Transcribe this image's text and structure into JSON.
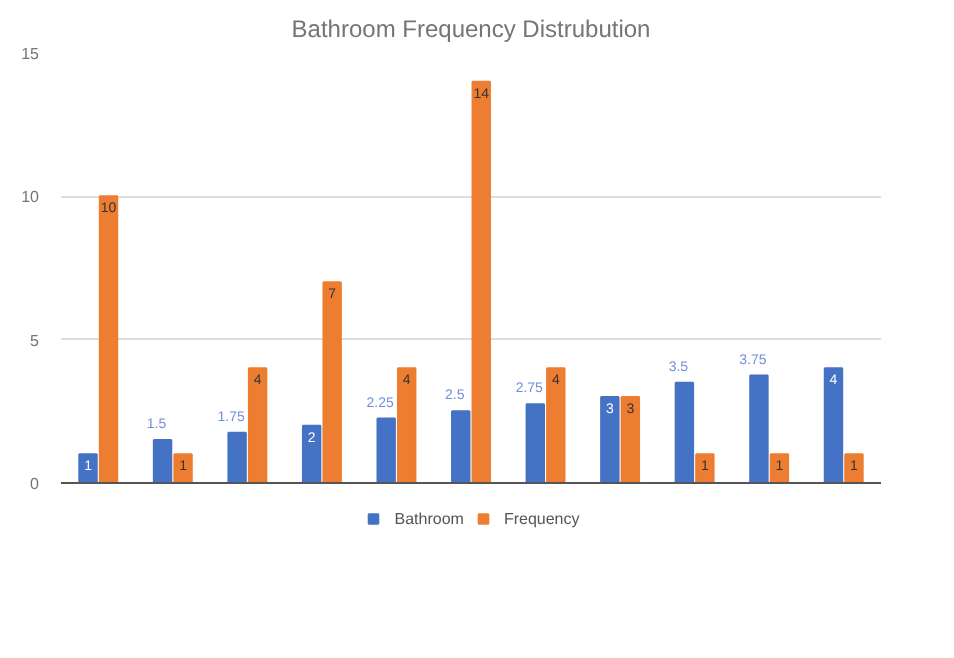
{
  "chart_data": {
    "type": "bar",
    "title": "Bathroom Frequency Distrubution",
    "categories": [
      null,
      null,
      null,
      null,
      null,
      null,
      null,
      null,
      null,
      null,
      null
    ],
    "series": [
      {
        "name": "Bathroom",
        "color": "#4472c4",
        "values": [
          1,
          1.5,
          1.75,
          2,
          2.25,
          2.5,
          2.75,
          3,
          3.5,
          3.75,
          4
        ]
      },
      {
        "name": "Frequency",
        "color": "#ed7d31",
        "values": [
          10,
          1,
          4,
          7,
          4,
          14,
          4,
          3,
          1,
          1,
          1
        ]
      }
    ],
    "ylim": [
      0,
      15
    ],
    "yticks": [
      0,
      5,
      10,
      15
    ],
    "grid": "y",
    "legend": "bottom",
    "data_labels": true
  }
}
